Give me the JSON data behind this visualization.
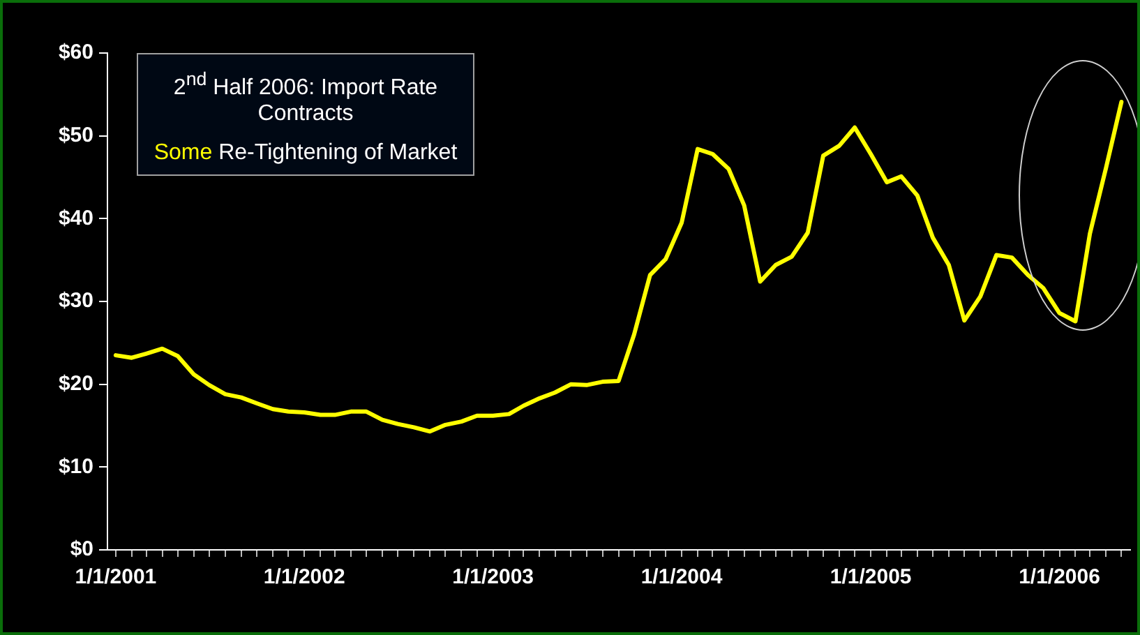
{
  "chart_data": {
    "type": "line",
    "x": [
      "2001-01",
      "2001-02",
      "2001-03",
      "2001-04",
      "2001-05",
      "2001-06",
      "2001-07",
      "2001-08",
      "2001-09",
      "2001-10",
      "2001-11",
      "2001-12",
      "2002-01",
      "2002-02",
      "2002-03",
      "2002-04",
      "2002-05",
      "2002-06",
      "2002-07",
      "2002-08",
      "2002-09",
      "2002-10",
      "2002-11",
      "2002-12",
      "2003-01",
      "2003-02",
      "2003-03",
      "2003-04",
      "2003-05",
      "2003-06",
      "2003-07",
      "2003-08",
      "2003-09",
      "2003-10",
      "2003-11",
      "2003-12",
      "2004-01",
      "2004-02",
      "2004-03",
      "2004-04",
      "2004-05",
      "2004-06",
      "2004-07",
      "2004-08",
      "2004-09",
      "2004-10",
      "2004-11",
      "2004-12",
      "2005-01",
      "2005-02",
      "2005-03",
      "2005-04",
      "2005-05",
      "2005-06",
      "2005-07",
      "2005-08",
      "2005-09",
      "2005-10",
      "2005-11",
      "2005-12",
      "2006-01",
      "2006-02",
      "2006-03",
      "2006-04",
      "2006-05"
    ],
    "series": [
      {
        "color": "#ffff00",
        "values": [
          23.5,
          23.2,
          23.7,
          24.3,
          23.4,
          21.2,
          19.9,
          18.8,
          18.4,
          17.7,
          17.0,
          16.7,
          16.6,
          16.3,
          16.3,
          16.7,
          16.7,
          15.7,
          15.2,
          14.8,
          14.3,
          15.1,
          15.5,
          16.2,
          16.2,
          16.4,
          17.4,
          18.3,
          19.0,
          20.0,
          19.9,
          20.3,
          20.4,
          26.0,
          33.2,
          35.1,
          39.5,
          48.4,
          47.8,
          46.0,
          41.6,
          32.4,
          34.4,
          35.4,
          38.3,
          47.6,
          48.8,
          51.0,
          47.8,
          44.4,
          45.1,
          42.8,
          37.7,
          34.4,
          27.7,
          30.6,
          35.6,
          35.3,
          33.2,
          31.6,
          28.6,
          27.6,
          38.2,
          46.1,
          54.1
        ]
      }
    ],
    "xlim": [
      "2000-12-16",
      "2006-05-18"
    ],
    "xticks": [
      {
        "value": "2001-01",
        "label": "1/1/2001"
      },
      {
        "value": "2001-02",
        "label": null
      },
      {
        "value": "2001-03",
        "label": null
      },
      {
        "value": "2001-04",
        "label": null
      },
      {
        "value": "2001-05",
        "label": null
      },
      {
        "value": "2001-06",
        "label": null
      },
      {
        "value": "2001-07",
        "label": null
      },
      {
        "value": "2001-08",
        "label": null
      },
      {
        "value": "2001-09",
        "label": null
      },
      {
        "value": "2001-10",
        "label": null
      },
      {
        "value": "2001-11",
        "label": null
      },
      {
        "value": "2001-12",
        "label": null
      },
      {
        "value": "2002-01",
        "label": "1/1/2002"
      },
      {
        "value": "2002-02",
        "label": null
      },
      {
        "value": "2002-03",
        "label": null
      },
      {
        "value": "2002-04",
        "label": null
      },
      {
        "value": "2002-05",
        "label": null
      },
      {
        "value": "2002-06",
        "label": null
      },
      {
        "value": "2002-07",
        "label": null
      },
      {
        "value": "2002-08",
        "label": null
      },
      {
        "value": "2002-09",
        "label": null
      },
      {
        "value": "2002-10",
        "label": null
      },
      {
        "value": "2002-11",
        "label": null
      },
      {
        "value": "2002-12",
        "label": null
      },
      {
        "value": "2003-01",
        "label": "1/1/2003"
      },
      {
        "value": "2003-02",
        "label": null
      },
      {
        "value": "2003-03",
        "label": null
      },
      {
        "value": "2003-04",
        "label": null
      },
      {
        "value": "2003-05",
        "label": null
      },
      {
        "value": "2003-06",
        "label": null
      },
      {
        "value": "2003-07",
        "label": null
      },
      {
        "value": "2003-08",
        "label": null
      },
      {
        "value": "2003-09",
        "label": null
      },
      {
        "value": "2003-10",
        "label": null
      },
      {
        "value": "2003-11",
        "label": null
      },
      {
        "value": "2003-12",
        "label": null
      },
      {
        "value": "2004-01",
        "label": "1/1/2004"
      },
      {
        "value": "2004-02",
        "label": null
      },
      {
        "value": "2004-03",
        "label": null
      },
      {
        "value": "2004-04",
        "label": null
      },
      {
        "value": "2004-05",
        "label": null
      },
      {
        "value": "2004-06",
        "label": null
      },
      {
        "value": "2004-07",
        "label": null
      },
      {
        "value": "2004-08",
        "label": null
      },
      {
        "value": "2004-09",
        "label": null
      },
      {
        "value": "2004-10",
        "label": null
      },
      {
        "value": "2004-11",
        "label": null
      },
      {
        "value": "2004-12",
        "label": null
      },
      {
        "value": "2005-01",
        "label": "1/1/2005"
      },
      {
        "value": "2005-02",
        "label": null
      },
      {
        "value": "2005-03",
        "label": null
      },
      {
        "value": "2005-04",
        "label": null
      },
      {
        "value": "2005-05",
        "label": null
      },
      {
        "value": "2005-06",
        "label": null
      },
      {
        "value": "2005-07",
        "label": null
      },
      {
        "value": "2005-08",
        "label": null
      },
      {
        "value": "2005-09",
        "label": null
      },
      {
        "value": "2005-10",
        "label": null
      },
      {
        "value": "2005-11",
        "label": null
      },
      {
        "value": "2005-12",
        "label": null
      },
      {
        "value": "2006-01",
        "label": "1/1/2006"
      },
      {
        "value": "2006-02",
        "label": null
      },
      {
        "value": "2006-03",
        "label": null
      },
      {
        "value": "2006-04",
        "label": null
      },
      {
        "value": "2006-05",
        "label": null
      }
    ],
    "ylim": [
      0,
      60
    ],
    "yticks": [
      {
        "value": 0,
        "label": "$0"
      },
      {
        "value": 10,
        "label": "$10"
      },
      {
        "value": 20,
        "label": "$20"
      },
      {
        "value": 30,
        "label": "$30"
      },
      {
        "value": 40,
        "label": "$40"
      },
      {
        "value": 50,
        "label": "$50"
      },
      {
        "value": 60,
        "label": "$60"
      }
    ],
    "grid": false,
    "legend": false,
    "marker": "none",
    "line_style": "solid",
    "annotations": [
      "2$^{nd}$ Half 2006: Import Rate Contracts",
      "Some Re-Tightening of Market"
    ]
  }
}
